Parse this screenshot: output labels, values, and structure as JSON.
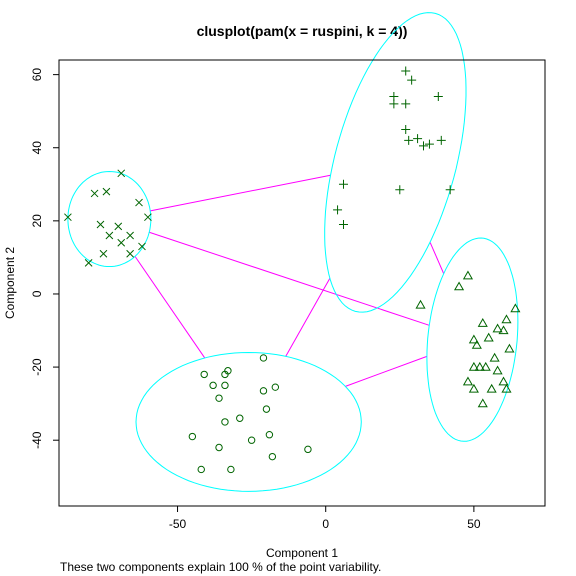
{
  "chart_data": {
    "type": "scatter",
    "title": "clusplot(pam(x = ruspini, k = 4))",
    "xlabel": "Component 1",
    "ylabel": "Component 2",
    "footnote": "These two components explain 100 % of the point variability.",
    "xlim": [
      -90,
      74
    ],
    "ylim": [
      -58,
      64
    ],
    "xticks": [
      -50,
      0,
      50
    ],
    "yticks": [
      -40,
      -20,
      0,
      20,
      40,
      60
    ],
    "grid": false,
    "colors": {
      "points": "#006400",
      "ellipse": "#00ffff",
      "connector": "#ff00ff",
      "frame": "#000000"
    },
    "clusters": [
      {
        "symbol": "x",
        "center": [
          -73,
          20.5
        ],
        "radii": [
          14,
          13
        ],
        "angle": 0,
        "points": [
          [
            -87,
            21
          ],
          [
            -78,
            27.5
          ],
          [
            -74,
            28
          ],
          [
            -69,
            33
          ],
          [
            -63,
            25
          ],
          [
            -60,
            21
          ],
          [
            -76,
            19
          ],
          [
            -70,
            18.5
          ],
          [
            -73,
            16
          ],
          [
            -66,
            16
          ],
          [
            -69,
            14
          ],
          [
            -75,
            11
          ],
          [
            -62,
            13
          ],
          [
            -66,
            11
          ],
          [
            -80,
            8.5
          ]
        ]
      },
      {
        "symbol": "+",
        "center": [
          23.5,
          36
        ],
        "radii": [
          43,
          20
        ],
        "angle": 70,
        "points": [
          [
            27,
            61
          ],
          [
            29,
            58.5
          ],
          [
            23,
            54
          ],
          [
            23,
            52
          ],
          [
            27,
            52
          ],
          [
            38,
            54
          ],
          [
            27,
            45
          ],
          [
            28,
            42
          ],
          [
            31,
            42.5
          ],
          [
            33,
            40.5
          ],
          [
            35,
            41
          ],
          [
            39,
            42
          ],
          [
            6,
            30
          ],
          [
            25,
            28.5
          ],
          [
            42,
            28.5
          ],
          [
            4,
            23
          ],
          [
            6,
            19
          ]
        ]
      },
      {
        "symbol": "triangle",
        "center": [
          49.5,
          -12.5
        ],
        "radii": [
          28,
          15
        ],
        "angle": 82,
        "points": [
          [
            48,
            5
          ],
          [
            45,
            2
          ],
          [
            32,
            -3
          ],
          [
            64,
            -4
          ],
          [
            61,
            -7
          ],
          [
            53,
            -8
          ],
          [
            58,
            -9.5
          ],
          [
            55,
            -12
          ],
          [
            60,
            -10
          ],
          [
            50,
            -12.5
          ],
          [
            51,
            -14
          ],
          [
            62,
            -15
          ],
          [
            57,
            -17.5
          ],
          [
            52,
            -20
          ],
          [
            54,
            -20
          ],
          [
            50,
            -20
          ],
          [
            58,
            -21
          ],
          [
            48,
            -24
          ],
          [
            60,
            -24
          ],
          [
            50,
            -26
          ],
          [
            56,
            -26
          ],
          [
            61,
            -26
          ],
          [
            53,
            -30
          ]
        ]
      },
      {
        "symbol": "circle",
        "center": [
          -26,
          -35
        ],
        "radii": [
          38,
          19
        ],
        "angle": 0,
        "points": [
          [
            -21,
            -17.5
          ],
          [
            -33,
            -21
          ],
          [
            -34,
            -22
          ],
          [
            -41,
            -22
          ],
          [
            -38,
            -25
          ],
          [
            -34,
            -25
          ],
          [
            -21,
            -26.5
          ],
          [
            -17,
            -25.5
          ],
          [
            -36,
            -28.5
          ],
          [
            -20,
            -31.5
          ],
          [
            -29,
            -34
          ],
          [
            -34,
            -35
          ],
          [
            -19,
            -38.5
          ],
          [
            -45,
            -39
          ],
          [
            -25,
            -40
          ],
          [
            -36,
            -42
          ],
          [
            -6,
            -42.5
          ],
          [
            -18,
            -44.5
          ],
          [
            -42,
            -48
          ],
          [
            -32,
            -48
          ]
        ]
      }
    ],
    "connections": [
      [
        0,
        1
      ],
      [
        0,
        2
      ],
      [
        0,
        3
      ],
      [
        1,
        2
      ],
      [
        1,
        3
      ],
      [
        2,
        3
      ]
    ]
  }
}
